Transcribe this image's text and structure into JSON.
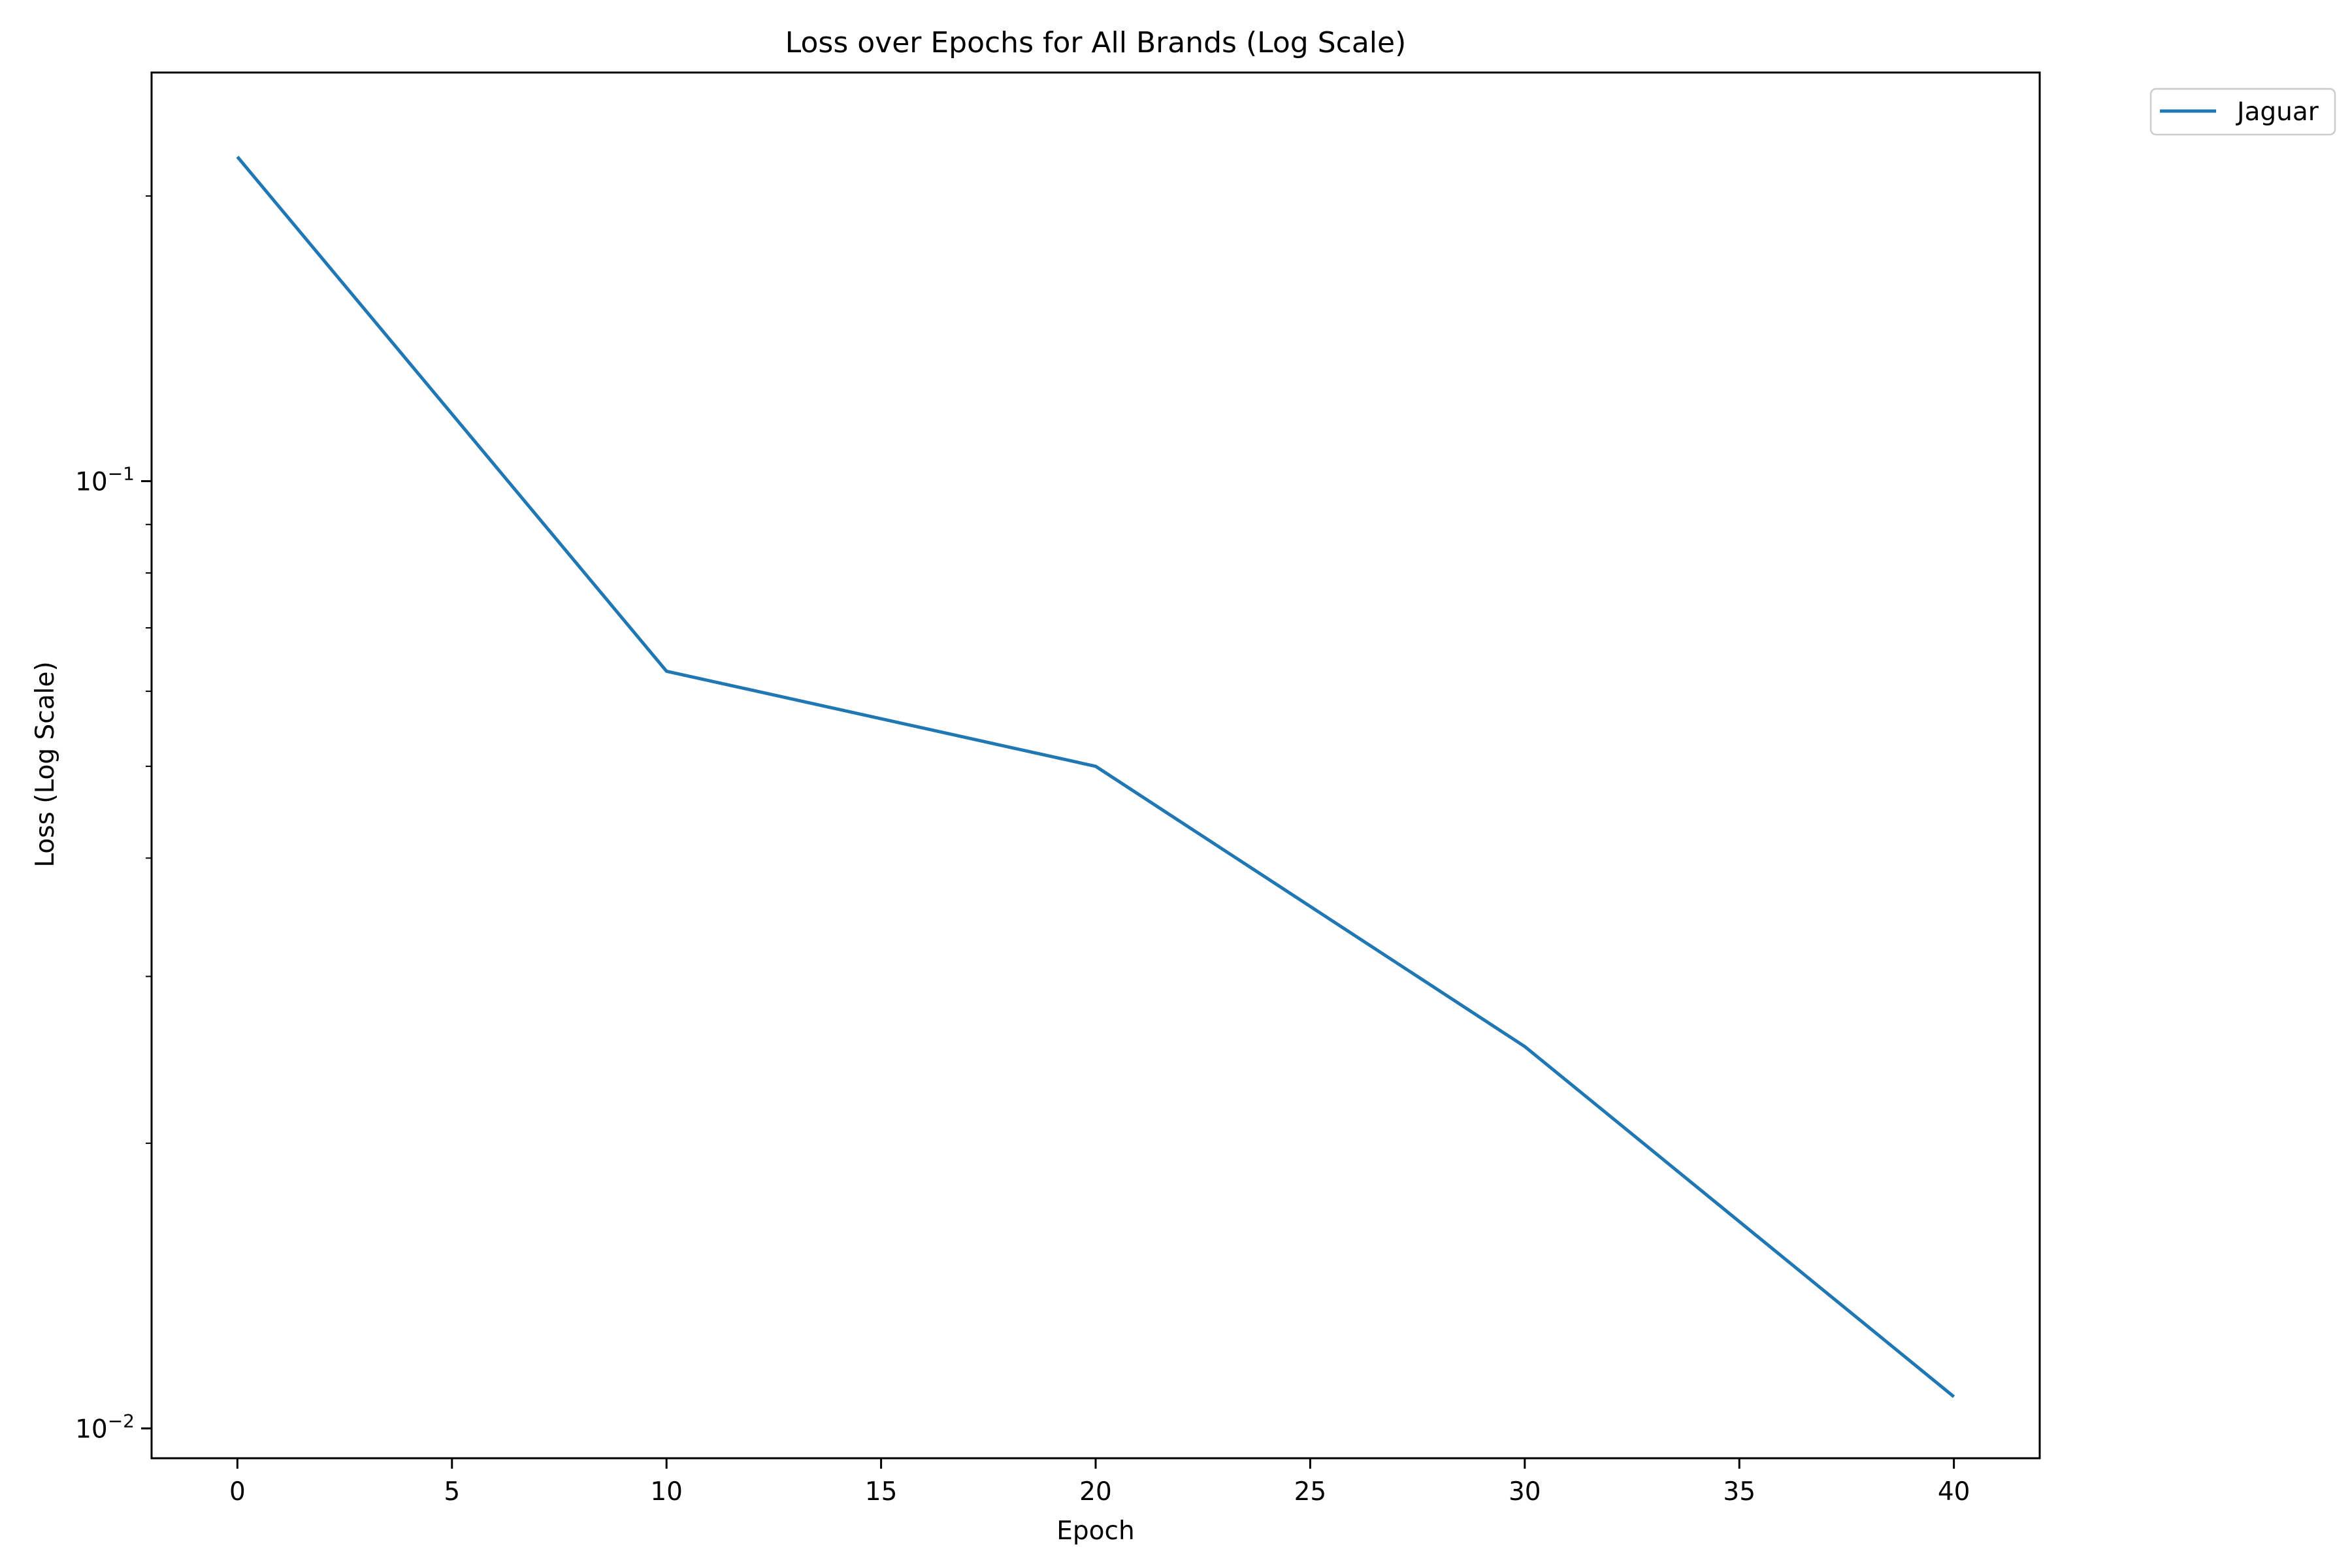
{
  "chart_data": {
    "type": "line",
    "title": "Loss over Epochs for All Brands (Log Scale)",
    "xlabel": "Epoch",
    "ylabel": "Loss (Log Scale)",
    "xlim": [
      -2,
      42
    ],
    "ylim": [
      0.0093,
      0.27
    ],
    "yscale": "log",
    "xticks": [
      0,
      5,
      10,
      15,
      20,
      25,
      30,
      35,
      40
    ],
    "yticks_major": [
      {
        "value": 0.1,
        "base": "10",
        "exponent": "−1"
      },
      {
        "value": 0.01,
        "base": "10",
        "exponent": "−2"
      }
    ],
    "yticks_minor": [
      0.02,
      0.03,
      0.04,
      0.05,
      0.06,
      0.07,
      0.08,
      0.09,
      0.2
    ],
    "grid": false,
    "legend_position": "outside-top-right",
    "series": [
      {
        "name": "Jaguar",
        "color": "#1f77b4",
        "x": [
          0,
          10,
          20,
          30,
          40
        ],
        "y": [
          0.22,
          0.063,
          0.05,
          0.0253,
          0.0108
        ]
      }
    ]
  }
}
